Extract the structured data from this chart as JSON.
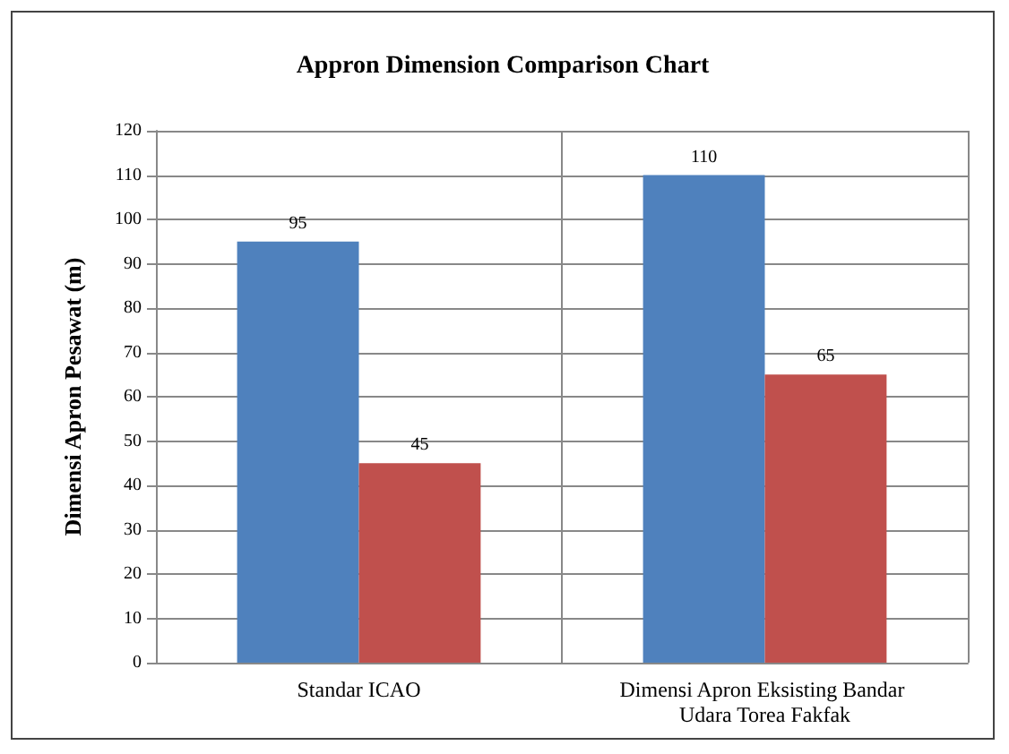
{
  "chart_data": {
    "type": "bar",
    "title": "Appron Dimension Comparison Chart",
    "ylabel": "Dimensi Apron Pesawat (m)",
    "categories": [
      "Standar ICAO",
      "Dimensi Apron Eksisting Bandar Udara Torea Fakfak"
    ],
    "series": [
      {
        "color": "#4f81bd",
        "values": [
          95,
          110
        ]
      },
      {
        "color": "#c0504d",
        "values": [
          45,
          65
        ]
      }
    ],
    "ylim": [
      0,
      120
    ],
    "yticks": [
      0,
      10,
      20,
      30,
      40,
      50,
      60,
      70,
      80,
      90,
      100,
      110,
      120
    ],
    "grid": true,
    "data_labels": true
  }
}
